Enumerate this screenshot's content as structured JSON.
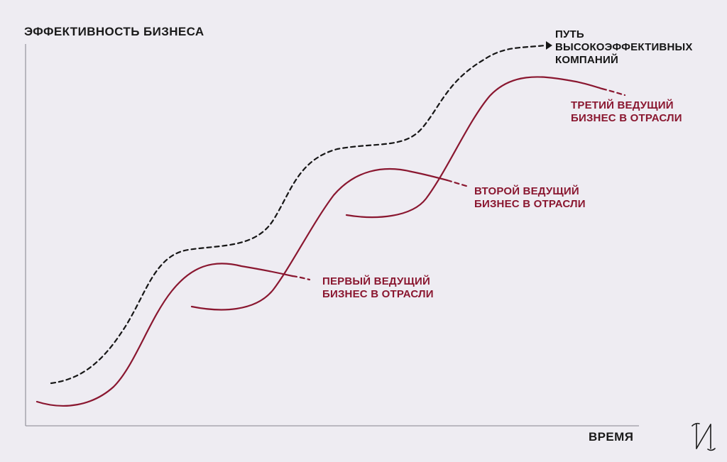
{
  "diagram": {
    "y_axis_title": "ЭФФЕКТИВНОСТЬ БИЗНЕСА",
    "x_axis_title": "ВРЕМЯ",
    "high_performers_path": {
      "lines": [
        "ПУТЬ",
        "ВЫСОКОЭФФЕКТИВНЫХ",
        "КОМПАНИЙ"
      ]
    },
    "curves": [
      {
        "id": "first",
        "lines": [
          "ПЕРВЫЙ ВЕДУЩИЙ",
          "БИЗНЕС В ОТРАСЛИ"
        ]
      },
      {
        "id": "second",
        "lines": [
          "ВТОРОЙ ВЕДУЩИЙ",
          "БИЗНЕС В ОТРАСЛИ"
        ]
      },
      {
        "id": "third",
        "lines": [
          "ТРЕТИЙ ВЕДУЩИЙ",
          "БИЗНЕС В ОТРАСЛИ"
        ]
      }
    ]
  },
  "logo": {
    "name": "ИИ monogram"
  },
  "colors": {
    "background": "#eeecf2",
    "axis": "#9a99a2",
    "business_curve": "#8a1730",
    "path_curve": "#161616"
  }
}
